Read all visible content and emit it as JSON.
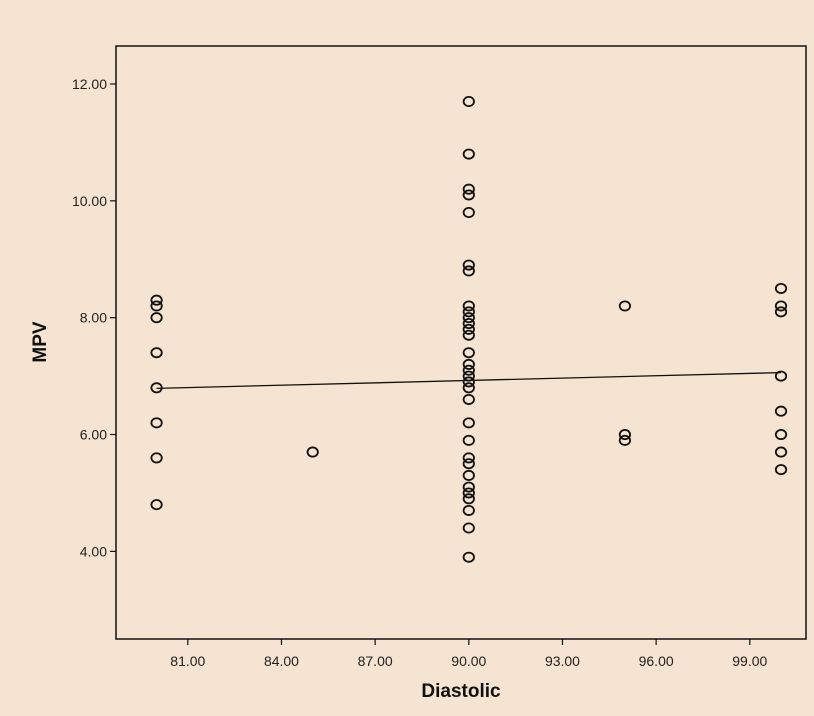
{
  "chart_data": {
    "type": "scatter",
    "title": "",
    "xlabel": "Diastolic",
    "ylabel": "MPV",
    "xlim": [
      78.7,
      100.8
    ],
    "ylim": [
      2.5,
      12.65
    ],
    "x_ticks": [
      81,
      84,
      87,
      90,
      93,
      96,
      99
    ],
    "x_tick_labels": [
      "81.00",
      "84.00",
      "87.00",
      "90.00",
      "93.00",
      "96.00",
      "99.00"
    ],
    "y_ticks": [
      4,
      6,
      8,
      10,
      12
    ],
    "y_tick_labels": [
      "4.00",
      "6.00",
      "8.00",
      "10.00",
      "12.00"
    ],
    "grid": false,
    "points": [
      {
        "x": 80,
        "y": 8.3
      },
      {
        "x": 80,
        "y": 8.2
      },
      {
        "x": 80,
        "y": 8.0
      },
      {
        "x": 80,
        "y": 7.4
      },
      {
        "x": 80,
        "y": 6.8
      },
      {
        "x": 80,
        "y": 6.2
      },
      {
        "x": 80,
        "y": 5.6
      },
      {
        "x": 80,
        "y": 4.8
      },
      {
        "x": 85,
        "y": 5.7
      },
      {
        "x": 90,
        "y": 11.7
      },
      {
        "x": 90,
        "y": 10.8
      },
      {
        "x": 90,
        "y": 10.2
      },
      {
        "x": 90,
        "y": 10.1
      },
      {
        "x": 90,
        "y": 9.8
      },
      {
        "x": 90,
        "y": 8.9
      },
      {
        "x": 90,
        "y": 8.8
      },
      {
        "x": 90,
        "y": 8.2
      },
      {
        "x": 90,
        "y": 8.1
      },
      {
        "x": 90,
        "y": 8.0
      },
      {
        "x": 90,
        "y": 7.9
      },
      {
        "x": 90,
        "y": 7.8
      },
      {
        "x": 90,
        "y": 7.7
      },
      {
        "x": 90,
        "y": 7.4
      },
      {
        "x": 90,
        "y": 7.2
      },
      {
        "x": 90,
        "y": 7.1
      },
      {
        "x": 90,
        "y": 7.0
      },
      {
        "x": 90,
        "y": 6.9
      },
      {
        "x": 90,
        "y": 6.8
      },
      {
        "x": 90,
        "y": 6.6
      },
      {
        "x": 90,
        "y": 6.2
      },
      {
        "x": 90,
        "y": 5.9
      },
      {
        "x": 90,
        "y": 5.6
      },
      {
        "x": 90,
        "y": 5.5
      },
      {
        "x": 90,
        "y": 5.3
      },
      {
        "x": 90,
        "y": 5.1
      },
      {
        "x": 90,
        "y": 5.0
      },
      {
        "x": 90,
        "y": 4.9
      },
      {
        "x": 90,
        "y": 4.7
      },
      {
        "x": 90,
        "y": 4.4
      },
      {
        "x": 90,
        "y": 3.9
      },
      {
        "x": 95,
        "y": 8.2
      },
      {
        "x": 95,
        "y": 6.0
      },
      {
        "x": 95,
        "y": 5.9
      },
      {
        "x": 100,
        "y": 8.5
      },
      {
        "x": 100,
        "y": 8.2
      },
      {
        "x": 100,
        "y": 8.1
      },
      {
        "x": 100,
        "y": 7.0
      },
      {
        "x": 100,
        "y": 6.4
      },
      {
        "x": 100,
        "y": 6.0
      },
      {
        "x": 100,
        "y": 5.7
      },
      {
        "x": 100,
        "y": 5.4
      }
    ],
    "fit_line": {
      "type": "linear",
      "x": [
        80,
        100
      ],
      "y": [
        6.79,
        7.06
      ]
    },
    "colors": {
      "background": "#f5e4d1",
      "marker": "#111111",
      "line": "#111111",
      "frame": "#111111"
    }
  }
}
